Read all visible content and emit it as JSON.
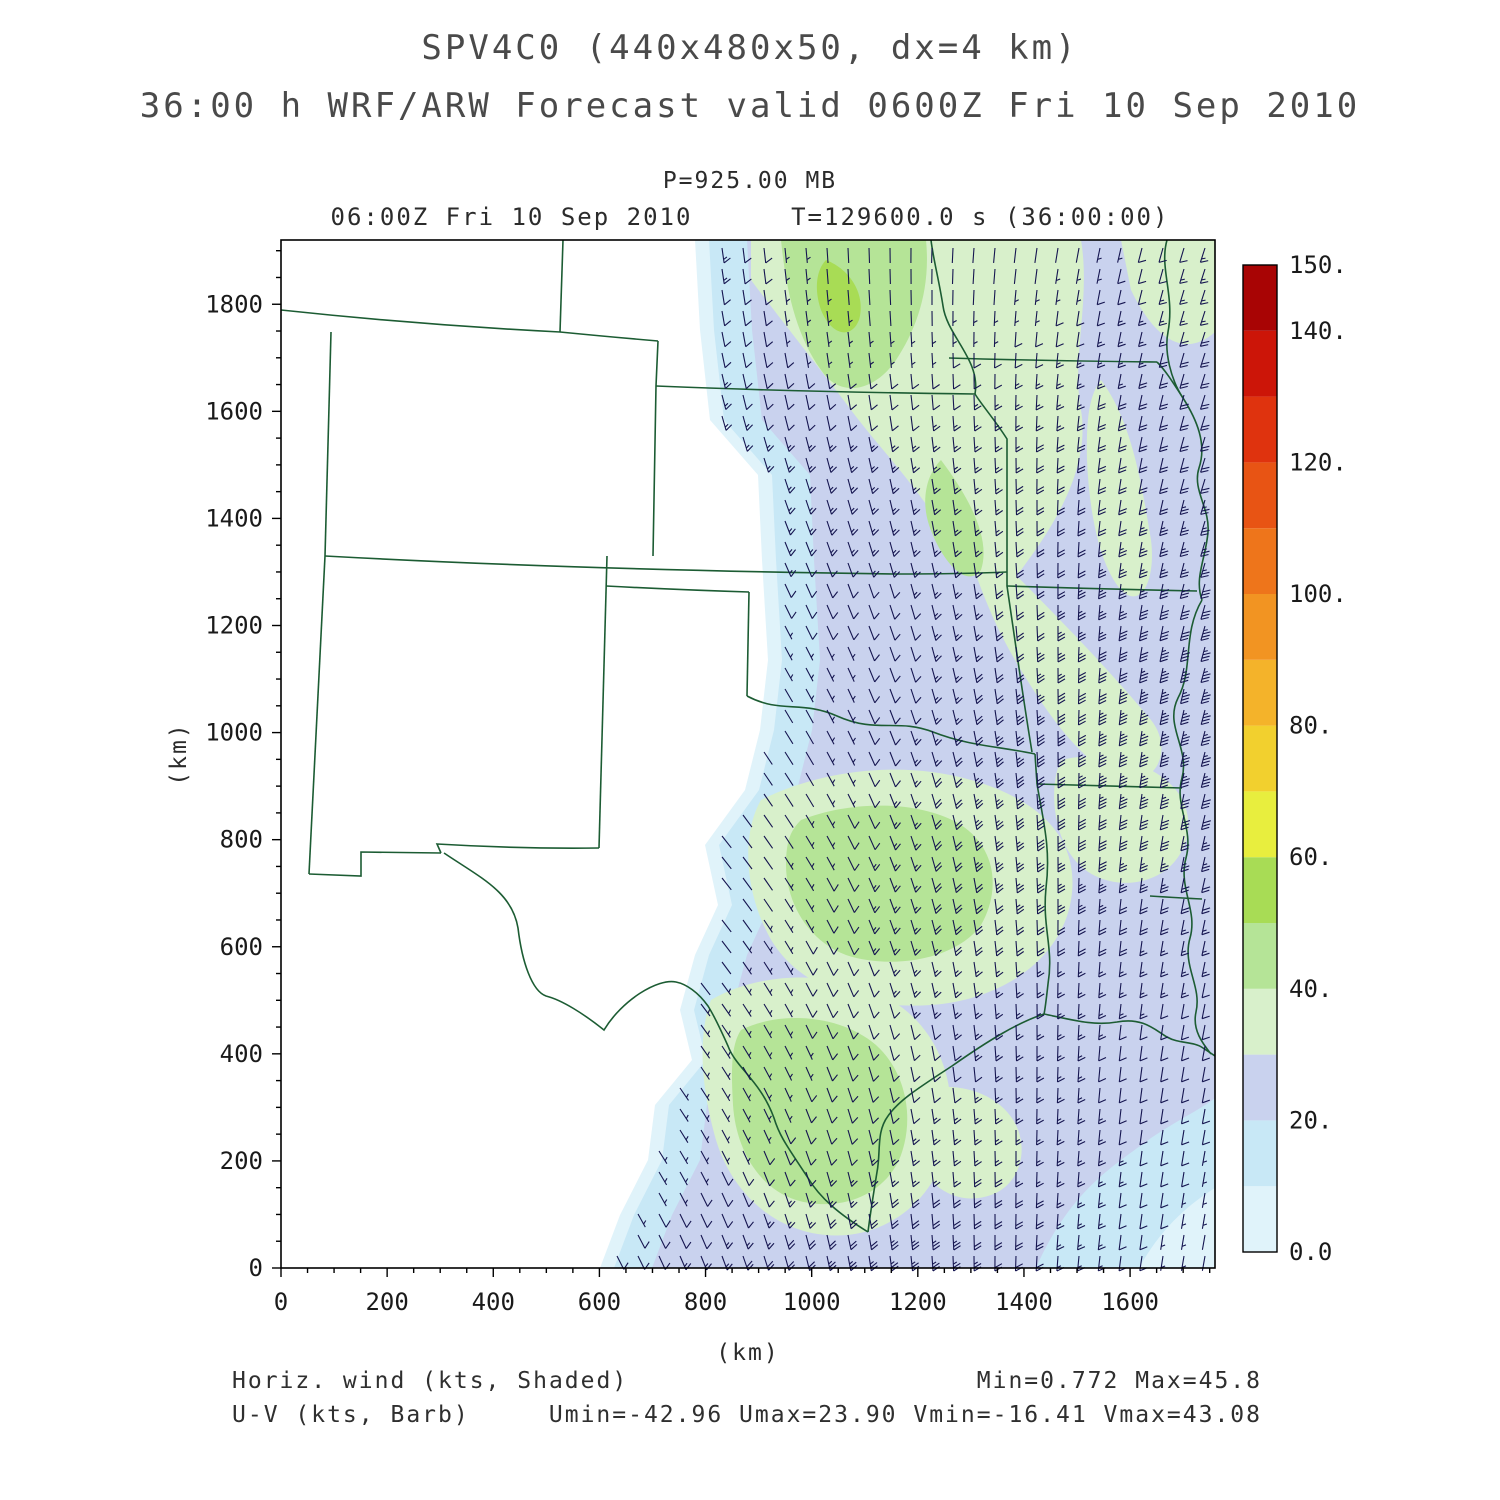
{
  "header": {
    "title_line1": "SPV4C0 (440x480x50, dx=4 km)",
    "title_line2": "36:00 h WRF/ARW Forecast valid 0600Z Fri 10 Sep 2010"
  },
  "plot_header": {
    "pressure_label": "P=925.00 MB",
    "time_line": "06:00Z Fri 10 Sep 2010      T=129600.0 s (36:00:00)"
  },
  "footer": {
    "shaded_label": "Horiz. wind (kts, Shaded)",
    "barb_label": "U-V (kts, Barb)",
    "minmax_label": "Min=0.772 Max=45.8",
    "uv_minmax_label": "Umin=-42.96 Umax=23.90 Vmin=-16.41 Vmax=43.08"
  },
  "chart_data": {
    "type": "heatmap",
    "subtype": "map-with-wind-barbs",
    "map_region": "South-central United States (NM, CO, KS, NE, OK, TX, MO, AR, LA, IA)",
    "title": "SPV4C0 (440x480x50, dx=4 km)",
    "subtitle": "36:00 h WRF/ARW Forecast valid 0600Z Fri 10 Sep 2010",
    "level": "P=925.00 MB",
    "valid_time": "06:00Z Fri 10 Sep 2010",
    "forecast_time": "T=129600.0 s (36:00:00)",
    "xlabel": "(km)",
    "ylabel": "(km)",
    "xlim": [
      0,
      1760
    ],
    "ylim": [
      0,
      1920
    ],
    "x_ticks": [
      0,
      200,
      400,
      600,
      800,
      1000,
      1200,
      1400,
      1600
    ],
    "y_ticks": [
      0,
      200,
      400,
      600,
      800,
      1000,
      1200,
      1400,
      1600,
      1800
    ],
    "shaded_field": {
      "name": "Horiz. wind",
      "units": "kts",
      "min": 0.772,
      "max": 45.8
    },
    "barb_field": {
      "name": "U-V",
      "units": "kts",
      "umin": -42.96,
      "umax": 23.9,
      "vmin": -16.41,
      "vmax": 43.08,
      "flow_description": "Predominantly southerly low-level jet over the plains; shading 0-50 kts, strongest in green bands"
    },
    "colorbar": {
      "levels": [
        0,
        10,
        20,
        30,
        40,
        50,
        60,
        70,
        80,
        90,
        100,
        110,
        120,
        130,
        140,
        150
      ],
      "tick_values": [
        0,
        20,
        40,
        60,
        80,
        100,
        120,
        140,
        150
      ],
      "tick_labels": [
        "0.0",
        "20.",
        "40.",
        "60.",
        "80.",
        "100.",
        "120.",
        "140.",
        "150."
      ],
      "colors": [
        "#e0f3fa",
        "#c8e8f6",
        "#c9d2ee",
        "#d8f0cb",
        "#b5e497",
        "#a8dc55",
        "#e8ee3e",
        "#f2d02e",
        "#f4b32a",
        "#f29422",
        "#ee751b",
        "#e85414",
        "#df330e",
        "#cc1508",
        "#a80404"
      ]
    },
    "map_line_color": "#1c5c33",
    "barb_color": "#151550"
  }
}
